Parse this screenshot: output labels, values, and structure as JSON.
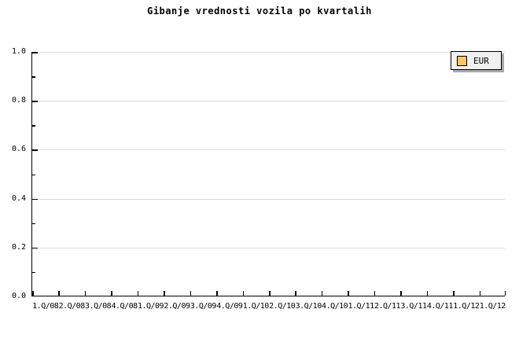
{
  "title": "Gibanje vrednosti vozila po kvartalih",
  "legend": {
    "label": "EUR",
    "swatch_color": "#fbc764"
  },
  "axes": {
    "y_tick_labels": [
      "1.0",
      "0.8",
      "0.6",
      "0.4",
      "0.2",
      "0.0"
    ],
    "x_tick_labels": [
      "1.Q/08",
      "2.Q/08",
      "3.Q/08",
      "4.Q/08",
      "1.Q/09",
      "2.Q/09",
      "3.Q/09",
      "4.Q/09",
      "1.Q/10",
      "2.Q/10",
      "3.Q/10",
      "4.Q/10",
      "1.Q/11",
      "2.Q/11",
      "3.Q/11",
      "4.Q/11",
      "1.Q/12",
      "1.Q/12"
    ]
  },
  "colors": {
    "background": "#ffffff",
    "axis": "#000000",
    "grid": "#dcdcdc",
    "legend_bg": "#f0f0f0",
    "legend_shadow": "#a9a9a9",
    "series_eur": "#fbc764"
  },
  "chart_data": {
    "type": "line",
    "title": "Gibanje vrednosti vozila po kvartalih",
    "categories": [
      "1.Q/08",
      "2.Q/08",
      "3.Q/08",
      "4.Q/08",
      "1.Q/09",
      "2.Q/09",
      "3.Q/09",
      "4.Q/09",
      "1.Q/10",
      "2.Q/10",
      "3.Q/10",
      "4.Q/10",
      "1.Q/11",
      "2.Q/11",
      "3.Q/11",
      "4.Q/11",
      "1.Q/12",
      "1.Q/12"
    ],
    "series": [
      {
        "name": "EUR",
        "color": "#fbc764",
        "values": []
      }
    ],
    "xlabel": "",
    "ylabel": "",
    "ylim": [
      0.0,
      1.0
    ],
    "y_ticks": [
      0.0,
      0.2,
      0.4,
      0.6,
      0.8,
      1.0
    ],
    "y_minor_ticks": [
      0.1,
      0.3,
      0.5,
      0.7,
      0.9
    ],
    "grid": true,
    "legend_position": "top-right"
  }
}
